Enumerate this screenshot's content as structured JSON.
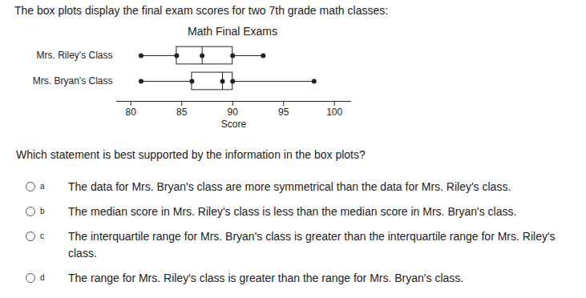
{
  "header": "The box plots display the final exam scores for two 7th grade math classes:",
  "chart_data": {
    "type": "boxplot",
    "title": "Math Final Exams",
    "categories": [
      "Mrs. Riley's Class",
      "Mrs. Bryan's Class"
    ],
    "min": [
      81,
      81
    ],
    "q1": [
      84.5,
      86
    ],
    "median": [
      87,
      89
    ],
    "q3": [
      90,
      90
    ],
    "max": [
      93,
      98
    ],
    "x_label": "Score",
    "xlim": [
      78.6,
      101.6
    ],
    "xticks": [
      80,
      85,
      90,
      95,
      100
    ]
  },
  "question": "Which statement is best supported by the information in the box plots?",
  "options": [
    {
      "letter": "a",
      "text": "The data for Mrs. Bryan's class are more symmetrical than the data for Mrs. Riley's class."
    },
    {
      "letter": "b",
      "text": "The median score in Mrs. Riley's class is less than the median score in Mrs. Bryan's class."
    },
    {
      "letter": "c",
      "text": "The interquartile range for Mrs. Bryan's class is greater than the interquartile range for Mrs. Riley's class."
    },
    {
      "letter": "d",
      "text": "The range for Mrs. Riley's class is greater than the range for Mrs. Bryan's class."
    }
  ]
}
